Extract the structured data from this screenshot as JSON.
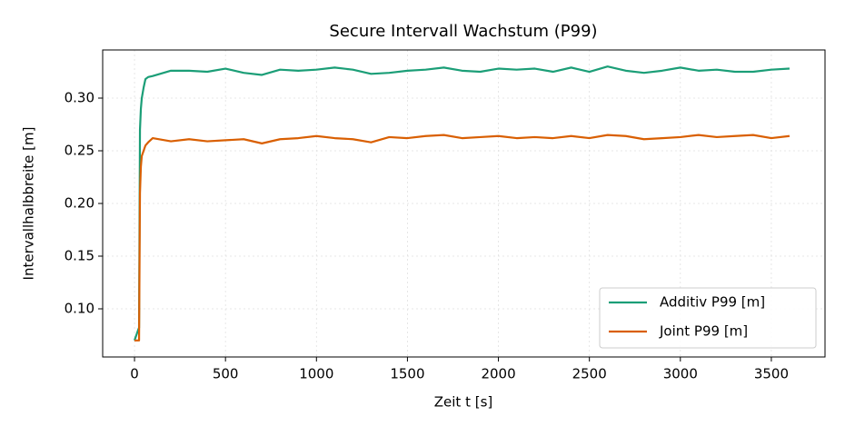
{
  "chart_data": {
    "type": "line",
    "title": "Secure Intervall Wachstum (P99)",
    "x_label": "Zeit t [s]",
    "y_label": "Intervallhalbbreite [m]",
    "x": [
      0,
      10,
      20,
      25,
      30,
      35,
      40,
      50,
      60,
      75,
      100,
      200,
      300,
      400,
      500,
      600,
      700,
      800,
      900,
      1000,
      1100,
      1200,
      1300,
      1400,
      1500,
      1600,
      1700,
      1800,
      1900,
      2000,
      2100,
      2200,
      2300,
      2400,
      2500,
      2600,
      2700,
      2800,
      2900,
      3000,
      3100,
      3200,
      3300,
      3400,
      3500,
      3600
    ],
    "series": [
      {
        "name": "Additiv P99 [m]",
        "color": "#1b9e77",
        "values": [
          0.07,
          0.075,
          0.08,
          0.082,
          0.27,
          0.29,
          0.3,
          0.31,
          0.318,
          0.32,
          0.321,
          0.326,
          0.326,
          0.325,
          0.328,
          0.324,
          0.322,
          0.327,
          0.326,
          0.327,
          0.329,
          0.327,
          0.323,
          0.324,
          0.326,
          0.327,
          0.329,
          0.326,
          0.325,
          0.328,
          0.327,
          0.328,
          0.325,
          0.329,
          0.325,
          0.33,
          0.326,
          0.324,
          0.326,
          0.329,
          0.326,
          0.327,
          0.325,
          0.325,
          0.327,
          0.328
        ]
      },
      {
        "name": "Joint P99 [m]",
        "color": "#d95f02",
        "values": [
          0.07,
          0.07,
          0.07,
          0.07,
          0.21,
          0.235,
          0.245,
          0.25,
          0.255,
          0.258,
          0.262,
          0.259,
          0.261,
          0.259,
          0.26,
          0.261,
          0.257,
          0.261,
          0.262,
          0.264,
          0.262,
          0.261,
          0.258,
          0.263,
          0.262,
          0.264,
          0.265,
          0.262,
          0.263,
          0.264,
          0.262,
          0.263,
          0.262,
          0.264,
          0.262,
          0.265,
          0.264,
          0.261,
          0.262,
          0.263,
          0.265,
          0.263,
          0.264,
          0.265,
          0.262,
          0.264
        ]
      }
    ],
    "xlim": [
      -175,
      3795
    ],
    "ylim": [
      0.0543,
      0.3457
    ],
    "xticks": [
      0,
      500,
      1000,
      1500,
      2000,
      2500,
      3000,
      3500
    ],
    "yticks": [
      {
        "value": 0.1,
        "label": "0.10"
      },
      0.15,
      {
        "value": 0.2,
        "label": "0.20"
      },
      0.25,
      {
        "value": 0.3,
        "label": "0.30"
      }
    ],
    "grid": true,
    "legend": "lower right"
  }
}
